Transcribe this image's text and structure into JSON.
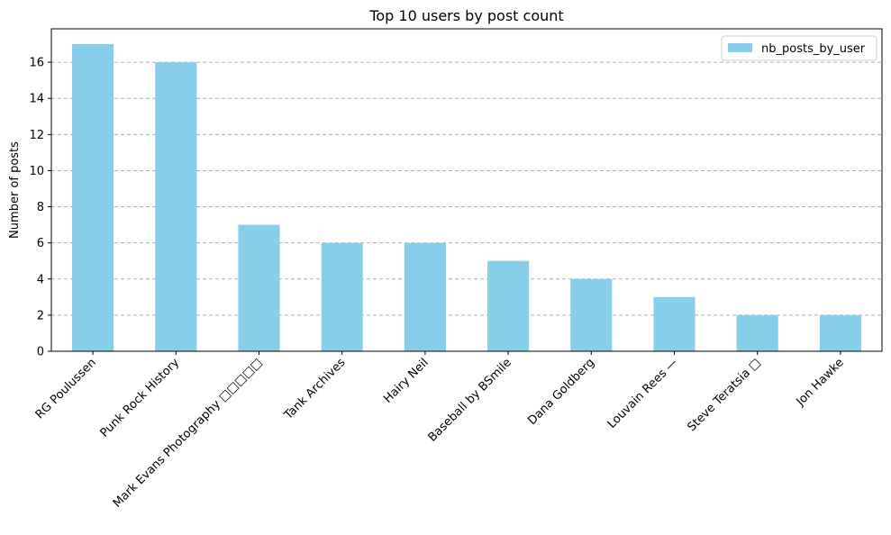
{
  "chart_data": {
    "type": "bar",
    "title": "Top 10 users by post count",
    "xlabel": "",
    "ylabel": "Number of posts",
    "categories": [
      "RG Poulussen",
      "Punk Rock History",
      "Mark Evans Photography  □□□□□",
      "Tank Archives",
      "Hairy Neil",
      "Baseball by BSmile",
      "Dana Goldberg",
      "Louvain Rees —",
      "Steve Teratsia □",
      "Jon Hawke"
    ],
    "series": [
      {
        "name": "nb_posts_by_user",
        "values": [
          17,
          16,
          7,
          6,
          6,
          5,
          4,
          3,
          2,
          2
        ]
      }
    ],
    "ylim": [
      0,
      17.85
    ],
    "yticks": [
      "0",
      "2",
      "4",
      "6",
      "8",
      "10",
      "12",
      "14",
      "16"
    ],
    "grid": "horizontal dashed",
    "legend_position": "top-right",
    "colors": {
      "bar": "#87ceeb",
      "grid": "#b0b0b0",
      "axis": "#000000"
    }
  }
}
